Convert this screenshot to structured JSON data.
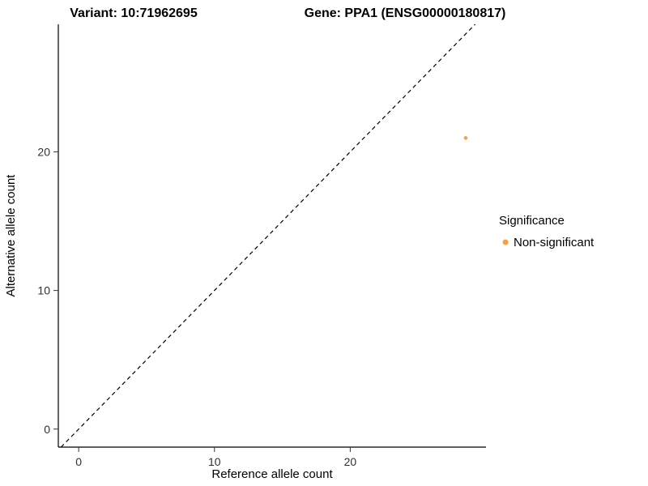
{
  "chart_data": {
    "type": "scatter",
    "title_left": "Variant: 10:71962695",
    "title_right": "Gene: PPA1 (ENSG00000180817)",
    "xlabel": "Reference allele count",
    "ylabel": "Alternative allele count",
    "x_domain": [
      -1.5,
      30.0
    ],
    "y_domain": [
      -1.3,
      29.2
    ],
    "x_ticks": [
      0,
      10,
      20
    ],
    "y_ticks": [
      0,
      10,
      20
    ],
    "grid": "off",
    "points": [
      {
        "x": 28.5,
        "y": 21,
        "series": "Non-significant"
      }
    ],
    "point_color": "#F9A03F",
    "point_radius": 2.3,
    "identity_line": {
      "style": "dashed",
      "from": -1.3,
      "to": 29.2
    },
    "legend": {
      "title": "Significance",
      "position": "right",
      "entries": [
        {
          "label": "Non-significant",
          "color": "#F9A03F"
        }
      ]
    }
  }
}
